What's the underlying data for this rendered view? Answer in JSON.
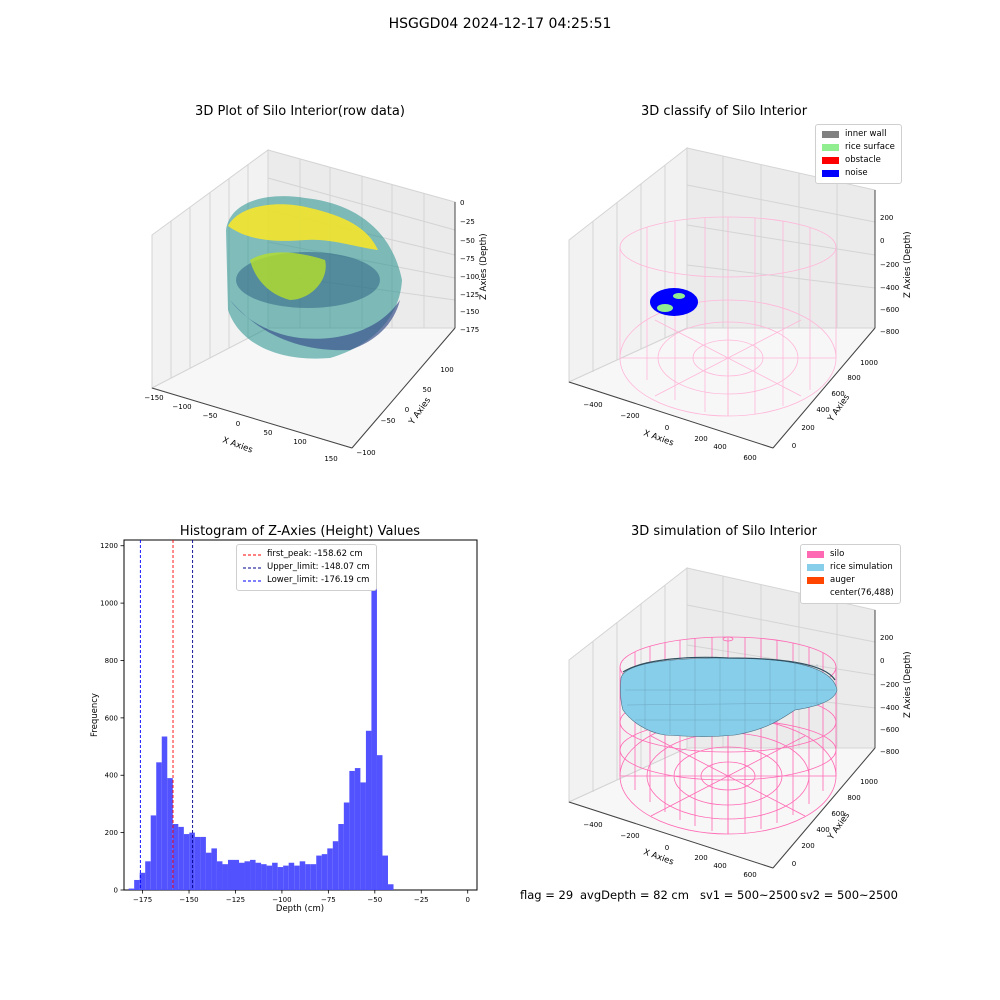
{
  "figure": {
    "suptitle": "HSGGD04 2024-12-17 04:25:51",
    "footer": {
      "flag": "flag = 29",
      "avg_depth": "avgDepth = 82 cm",
      "sv1": "sv1 = 500~2500",
      "sv2": "sv2 = 500~2500"
    }
  },
  "chart_data": [
    {
      "type": "scatter",
      "title": "3D Plot of Silo Interior(row data)",
      "projection": "3d",
      "xlabel": "X Axies",
      "ylabel": "Y Axies",
      "zlabel": "Z Axies (Depth)",
      "xticks": [
        "−150",
        "−100",
        "−50",
        "0",
        "50",
        "100",
        "150"
      ],
      "yticks": [
        "−100",
        "−50",
        "0",
        "50",
        "100"
      ],
      "zticks": [
        "0",
        "−25",
        "−50",
        "−75",
        "−100",
        "−125",
        "−150",
        "−175"
      ],
      "xlim": [
        -150,
        150
      ],
      "ylim": [
        -100,
        120
      ],
      "zlim": [
        -185,
        5
      ],
      "colormap": "viridis",
      "grid": true,
      "description_values": {
        "z_range": [
          -180,
          0
        ]
      }
    },
    {
      "type": "scatter",
      "title": "3D classify of Silo Interior",
      "projection": "3d",
      "xlabel": "X Axies",
      "ylabel": "Y Axies",
      "zlabel": "Z Axies (Depth)",
      "xticks": [
        "−400",
        "−200",
        "0",
        "200",
        "400",
        "600"
      ],
      "yticks": [
        "0",
        "200",
        "400",
        "600",
        "800",
        "1000"
      ],
      "zticks": [
        "200",
        "0",
        "−200",
        "−400",
        "−600",
        "−800"
      ],
      "legend": {
        "position": "top-right",
        "items": [
          {
            "label": "inner wall",
            "color": "#808080"
          },
          {
            "label": "rice surface",
            "color": "#90ee90"
          },
          {
            "label": "obstacle",
            "color": "#ff0000"
          },
          {
            "label": "noise",
            "color": "#0000ff"
          }
        ]
      },
      "wire_color": "#ffb6d9",
      "grid": true
    },
    {
      "type": "bar",
      "title": "Histogram of Z-Axies (Height) Values",
      "xlabel": "Depth (cm)",
      "ylabel": "Frequency",
      "xlim": [
        -185,
        5
      ],
      "ylim": [
        0,
        1220
      ],
      "bar_color": "#4c4cff",
      "xticks": [
        {
          "v": -175,
          "label": "−175"
        },
        {
          "v": -150,
          "label": "−150"
        },
        {
          "v": -125,
          "label": "−125"
        },
        {
          "v": -100,
          "label": "−100"
        },
        {
          "v": -75,
          "label": "−75"
        },
        {
          "v": -50,
          "label": "−50"
        },
        {
          "v": -25,
          "label": "−25"
        },
        {
          "v": 0,
          "label": "0"
        }
      ],
      "yticks": [
        {
          "v": 0,
          "label": "0"
        },
        {
          "v": 200,
          "label": "200"
        },
        {
          "v": 400,
          "label": "400"
        },
        {
          "v": 600,
          "label": "600"
        },
        {
          "v": 800,
          "label": "800"
        },
        {
          "v": 1000,
          "label": "1000"
        },
        {
          "v": 1200,
          "label": "1200"
        }
      ],
      "bin_start": -182.5,
      "bin_width": 2.97,
      "values": [
        5,
        35,
        60,
        100,
        260,
        445,
        535,
        390,
        230,
        220,
        195,
        200,
        185,
        185,
        130,
        145,
        100,
        90,
        105,
        105,
        95,
        100,
        105,
        95,
        90,
        85,
        95,
        80,
        85,
        95,
        85,
        100,
        90,
        90,
        120,
        125,
        145,
        170,
        230,
        305,
        415,
        425,
        375,
        555,
        1165,
        470,
        120,
        20
      ],
      "vlines": [
        {
          "x": -158.62,
          "color": "#ff0000",
          "label": "first_peak: -158.62 cm"
        },
        {
          "x": -148.07,
          "color": "#00008b",
          "label": "Upper_limit: -148.07 cm"
        },
        {
          "x": -176.19,
          "color": "#0000ff",
          "label": "Lower_limit: -176.19 cm"
        }
      ],
      "legend_position": "top-center",
      "grid": false
    },
    {
      "type": "area",
      "title": "3D simulation of Silo Interior",
      "projection": "3d",
      "xlabel": "X Axies",
      "ylabel": "Y Axies",
      "zlabel": "Z Axies (Depth)",
      "xticks": [
        "−400",
        "−200",
        "0",
        "200",
        "400",
        "600"
      ],
      "yticks": [
        "0",
        "200",
        "400",
        "600",
        "800",
        "1000"
      ],
      "zticks": [
        "200",
        "0",
        "−200",
        "−400",
        "−600",
        "−800"
      ],
      "legend": {
        "position": "top-right",
        "items": [
          {
            "label": "silo",
            "color": "#ff69b4"
          },
          {
            "label": "rice simulation",
            "color": "#87ceeb"
          },
          {
            "label": "auger",
            "color": "#ff4500"
          },
          {
            "label": "center(76,488)",
            "color": ""
          }
        ]
      },
      "wire_color": "#ff69b4",
      "surface_color": "#87ceeb",
      "grid": true
    }
  ]
}
